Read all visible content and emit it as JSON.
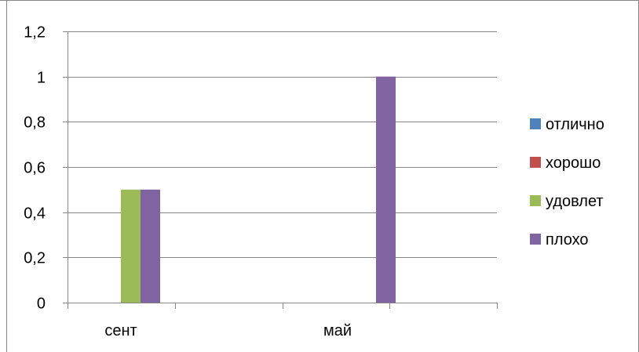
{
  "chart_data": {
    "type": "bar",
    "categories": [
      "сент",
      "май"
    ],
    "series": [
      {
        "name": "отлично",
        "values": [
          0,
          0
        ],
        "color": "#4F81BD"
      },
      {
        "name": "хорошо",
        "values": [
          0,
          0
        ],
        "color": "#C0504D"
      },
      {
        "name": "удовлет",
        "values": [
          0.5,
          0
        ],
        "color": "#9BBB59"
      },
      {
        "name": "плохо",
        "values": [
          0.5,
          1
        ],
        "color": "#8064A2"
      }
    ],
    "y_ticks": [
      "0",
      "0,2",
      "0,4",
      "0,6",
      "0,8",
      "1",
      "1,2"
    ],
    "ylim": [
      0,
      1.2
    ],
    "y_step": 0.2,
    "grid": true,
    "legend_position": "right",
    "gridline_color": "#868686",
    "frame_color": "#868686"
  }
}
